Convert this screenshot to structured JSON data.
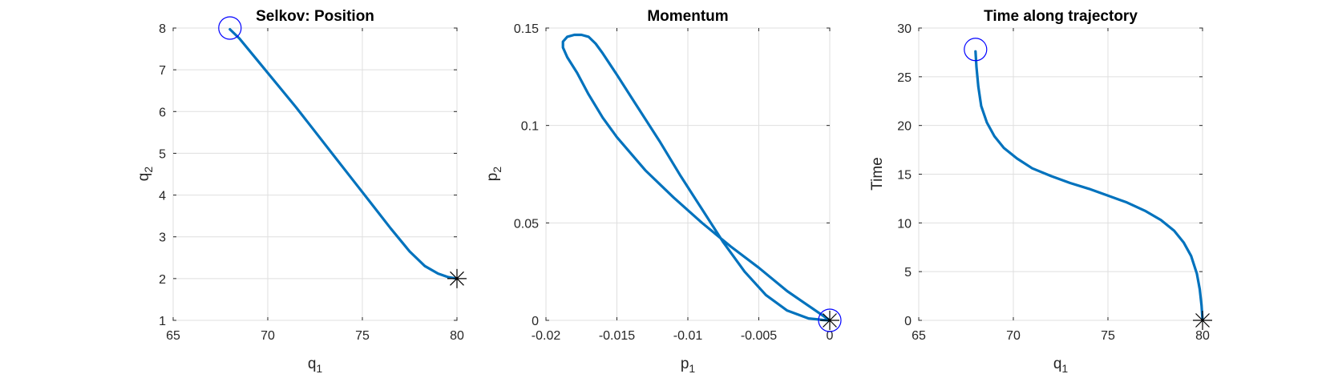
{
  "chart_data": [
    {
      "type": "line",
      "title": "Selkov: Position",
      "xlabel": {
        "base": "q",
        "sub": "1"
      },
      "ylabel": {
        "base": "q",
        "sub": "2"
      },
      "xlim": [
        65,
        80
      ],
      "ylim": [
        1,
        8
      ],
      "xticks": [
        65,
        70,
        75,
        80
      ],
      "yticks": [
        1,
        2,
        3,
        4,
        5,
        6,
        7,
        8
      ],
      "grid": true,
      "series": [
        {
          "color": "#0072BD",
          "x": [
            68.0,
            68.5,
            69.5,
            70.5,
            71.5,
            72.5,
            73.5,
            74.5,
            75.5,
            76.5,
            77.5,
            78.3,
            79.0,
            79.5,
            80.0
          ],
          "y": [
            7.97,
            7.75,
            7.2,
            6.65,
            6.1,
            5.52,
            4.94,
            4.36,
            3.78,
            3.2,
            2.65,
            2.3,
            2.12,
            2.04,
            2.0
          ]
        }
      ],
      "markers": [
        {
          "type": "circle",
          "color": "#0000FF",
          "x": 68.0,
          "y": 8.0
        },
        {
          "type": "asterisk",
          "color": "#000000",
          "x": 80.0,
          "y": 2.0
        }
      ]
    },
    {
      "type": "line",
      "title": "Momentum",
      "xlabel": {
        "base": "p",
        "sub": "1"
      },
      "ylabel": {
        "base": "p",
        "sub": "2"
      },
      "xlim": [
        -0.02,
        0
      ],
      "ylim": [
        0,
        0.15
      ],
      "xticks": [
        -0.02,
        -0.015,
        -0.01,
        -0.005,
        0
      ],
      "yticks": [
        0,
        0.05,
        0.1,
        0.15
      ],
      "grid": true,
      "series": [
        {
          "color": "#0072BD",
          "x": [
            0,
            -0.001,
            -0.002,
            -0.003,
            -0.005,
            -0.007,
            -0.009,
            -0.011,
            -0.013,
            -0.015,
            -0.016,
            -0.017,
            -0.0178,
            -0.0185,
            -0.0188,
            -0.0188,
            -0.0185,
            -0.018,
            -0.0175,
            -0.017,
            -0.0165,
            -0.016,
            -0.015,
            -0.0135,
            -0.012,
            -0.0105,
            -0.009,
            -0.0075,
            -0.006,
            -0.0045,
            -0.003,
            -0.0015,
            -0.0005,
            0
          ],
          "y": [
            0,
            0.005,
            0.01,
            0.015,
            0.027,
            0.038,
            0.05,
            0.063,
            0.077,
            0.094,
            0.104,
            0.116,
            0.127,
            0.135,
            0.14,
            0.143,
            0.1455,
            0.1465,
            0.1465,
            0.1455,
            0.142,
            0.137,
            0.126,
            0.109,
            0.092,
            0.074,
            0.057,
            0.04,
            0.025,
            0.013,
            0.005,
            0.001,
            0.0002,
            0
          ]
        }
      ],
      "markers": [
        {
          "type": "circle",
          "color": "#0000FF",
          "x": 0,
          "y": 0
        },
        {
          "type": "asterisk",
          "color": "#000000",
          "x": 0,
          "y": 0
        }
      ]
    },
    {
      "type": "line",
      "title": "Time along trajectory",
      "xlabel": {
        "base": "q",
        "sub": "1"
      },
      "ylabel": {
        "base": "Time",
        "sub": ""
      },
      "xlim": [
        65,
        80
      ],
      "ylim": [
        0,
        30
      ],
      "xticks": [
        65,
        70,
        75,
        80
      ],
      "yticks": [
        0,
        5,
        10,
        15,
        20,
        25,
        30
      ],
      "grid": true,
      "series": [
        {
          "color": "#0072BD",
          "x": [
            68.0,
            68.05,
            68.15,
            68.3,
            68.6,
            69.0,
            69.5,
            70.2,
            71.0,
            72.0,
            73.0,
            74.0,
            75.0,
            76.0,
            77.0,
            77.8,
            78.5,
            79.0,
            79.4,
            79.7,
            79.85,
            79.95,
            80.0
          ],
          "y": [
            27.6,
            26.0,
            24.0,
            22.0,
            20.3,
            18.9,
            17.7,
            16.6,
            15.6,
            14.8,
            14.1,
            13.5,
            12.8,
            12.1,
            11.2,
            10.3,
            9.2,
            8.0,
            6.6,
            4.8,
            3.2,
            1.5,
            0
          ]
        }
      ],
      "markers": [
        {
          "type": "circle",
          "color": "#0000FF",
          "x": 68.0,
          "y": 27.8
        },
        {
          "type": "asterisk",
          "color": "#000000",
          "x": 80.0,
          "y": 0
        }
      ]
    }
  ]
}
